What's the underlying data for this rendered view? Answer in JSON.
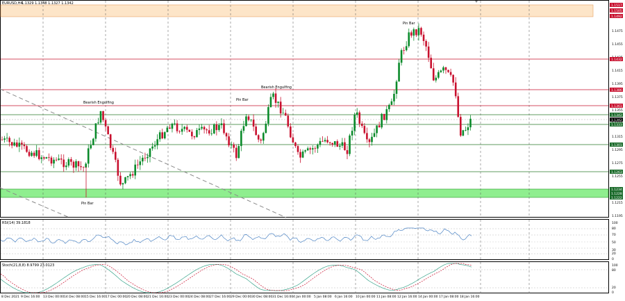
{
  "window": {
    "symbol_label": "EURUSD,H4",
    "ohlc_label": "1.1329 1.1348 1.1327 1.1342"
  },
  "colors": {
    "bull": "#0a8a2a",
    "bear": "#c8102e",
    "resistance_line": "#c8102e",
    "support_line": "#2a7a2a",
    "supply_zone": "#fde5c8",
    "demand_zone": "#8fee8f",
    "rsi_line": "#4d84c4",
    "stoch_main": "#3aa58c",
    "stoch_signal": "#c8102e",
    "trendline": "#8a8a8a",
    "grid": "#555555"
  },
  "main_panel": {
    "price_ticks": [
      "1.1475",
      "1.1455",
      "1.1435",
      "1.1415",
      "1.1395",
      "1.1375",
      "1.1355",
      "1.1335",
      "1.1315",
      "1.1295",
      "1.1275",
      "1.1255",
      "1.1235",
      "1.1215",
      "1.1195"
    ],
    "level_badges": [
      {
        "text": "1.1517",
        "kind": "res"
      },
      {
        "text": "1.1505",
        "kind": "res"
      },
      {
        "text": "1.1492",
        "kind": "res"
      },
      {
        "text": "1.1432",
        "kind": "res"
      },
      {
        "text": "1.1386",
        "kind": "res"
      },
      {
        "text": "1.1361",
        "kind": "res"
      },
      {
        "text": "1.1342",
        "kind": "cur"
      },
      {
        "text": "1.1342",
        "kind": "cur"
      },
      {
        "text": "1.1333",
        "kind": "sup"
      },
      {
        "text": "1.1301",
        "kind": "sup"
      },
      {
        "text": "1.1263",
        "kind": "sup"
      },
      {
        "text": "1.1234",
        "kind": "sup"
      },
      {
        "text": "1.1228",
        "kind": "sup"
      },
      {
        "text": "1.1222",
        "kind": "sup"
      }
    ],
    "annotations": [
      {
        "text": "Bearish Engulfing"
      },
      {
        "text": "Pin Bar"
      },
      {
        "text": "Bearish Engulfing"
      },
      {
        "text": "Pin Bar"
      },
      {
        "text": "Pin Bar"
      }
    ]
  },
  "rsi_panel": {
    "label": "RSI(14) 39.1818",
    "ticks": [
      "100",
      "80",
      "70",
      "50",
      "30",
      "20",
      "0"
    ]
  },
  "stoch_panel": {
    "label": "Stoch(21,8,8) 8.9799 23.0123",
    "ticks": [
      "100",
      "80",
      "20",
      "0"
    ]
  },
  "time_axis": [
    "8 Dec 2021",
    "9 Dec 16:00",
    "13 Dec 00:00",
    "14 Dec 08:00",
    "15 Dec 16:00",
    "17 Dec 00:00",
    "20 Dec 08:00",
    "21 Dec 16:00",
    "23 Dec 00:00",
    "24 Dec 08:00",
    "27 Dec 16:00",
    "29 Dec 00:00",
    "30 Dec 08:00",
    "31 Dec 16:00",
    "4 Jan 00:00",
    "5 Jan 08:00",
    "6 Jan 16:00",
    "10 Jan 00:00",
    "11 Jan 08:00",
    "12 Jan 16:00",
    "14 Jan 00:00",
    "17 Jan 08:00",
    "18 Jan 16:00"
  ]
}
